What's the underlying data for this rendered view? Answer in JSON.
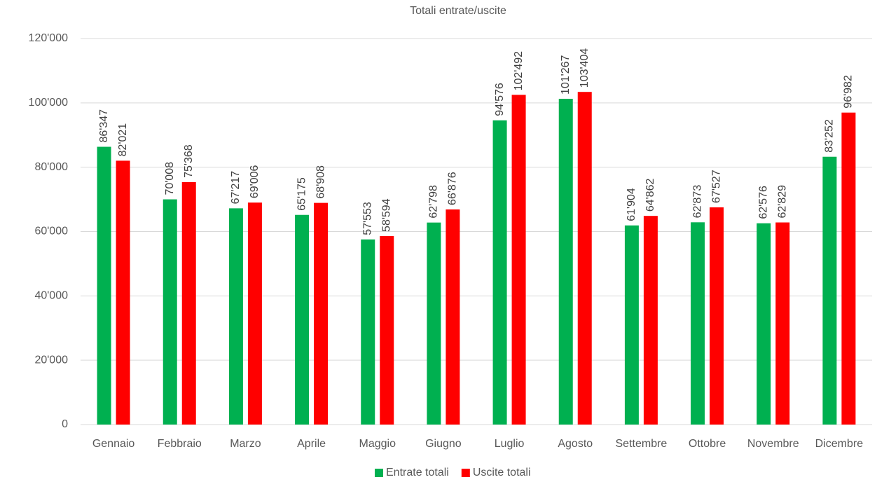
{
  "chart_data": {
    "type": "bar",
    "title": "Totali entrate/uscite",
    "categories": [
      "Gennaio",
      "Febbraio",
      "Marzo",
      "Aprile",
      "Maggio",
      "Giugno",
      "Luglio",
      "Agosto",
      "Settembre",
      "Ottobre",
      "Novembre",
      "Dicembre"
    ],
    "series": [
      {
        "name": "Entrate totali",
        "color": "#00b050",
        "values": [
          86347,
          70008,
          67217,
          65175,
          57553,
          62798,
          94576,
          101267,
          61904,
          62873,
          62576,
          83252
        ],
        "value_labels": [
          "86'347",
          "70'008",
          "67'217",
          "65'175",
          "57'553",
          "62'798",
          "94'576",
          "101'267",
          "61'904",
          "62'873",
          "62'576",
          "83'252"
        ]
      },
      {
        "name": "Uscite totali",
        "color": "#ff0000",
        "values": [
          82021,
          75368,
          69006,
          68908,
          58594,
          66876,
          102492,
          103404,
          64862,
          67527,
          62829,
          96982
        ],
        "value_labels": [
          "82'021",
          "75'368",
          "69'006",
          "68'908",
          "58'594",
          "66'876",
          "102'492",
          "103'404",
          "64'862",
          "67'527",
          "62'829",
          "96'982"
        ]
      }
    ],
    "ylim": [
      0,
      120000
    ],
    "yticks": [
      0,
      {
        "value": 20000,
        "label": "20'000"
      },
      {
        "value": 40000,
        "label": "40'000"
      },
      {
        "value": 60000,
        "label": "60'000"
      },
      {
        "value": 80000,
        "label": "80'000"
      },
      {
        "value": 100000,
        "label": "100'000"
      },
      {
        "value": 120000,
        "label": "120'000"
      }
    ],
    "grid": true,
    "legend": "bottom"
  }
}
